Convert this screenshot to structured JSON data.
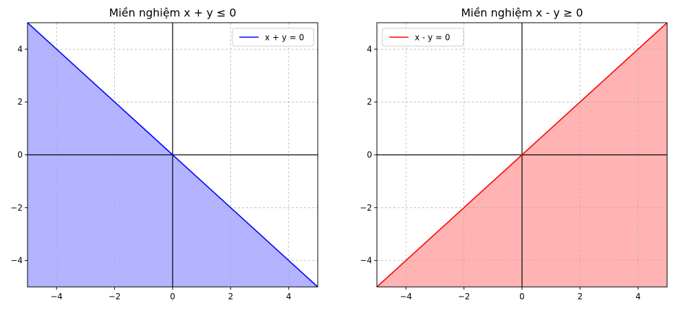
{
  "chart_data": [
    {
      "type": "area",
      "title": "Miền nghiệm x + y ≤ 0",
      "xlabel": "",
      "ylabel": "",
      "xlim": [
        -5,
        5
      ],
      "ylim": [
        -5,
        5
      ],
      "xticks": [
        -4,
        -2,
        0,
        2,
        4
      ],
      "yticks": [
        -4,
        -2,
        0,
        2,
        4
      ],
      "xtick_labels": [
        "−4",
        "−2",
        "0",
        "2",
        "4"
      ],
      "ytick_labels": [
        "−4",
        "−2",
        "0",
        "2",
        "4"
      ],
      "grid": true,
      "legend_position": "top-right",
      "series": [
        {
          "name": "x + y = 0",
          "color": "#0000ff",
          "x": [
            -5,
            5
          ],
          "y": [
            5,
            -5
          ]
        }
      ],
      "shaded_region": {
        "description_rule": "below line",
        "x": [
          -5,
          5
        ],
        "y_upper": [
          5,
          -5
        ],
        "y_lower": [
          -5,
          -5
        ],
        "color": "#b3b3ff"
      }
    },
    {
      "type": "area",
      "title": "Miền nghiệm x - y ≥ 0",
      "xlabel": "",
      "ylabel": "",
      "xlim": [
        -5,
        5
      ],
      "ylim": [
        -5,
        5
      ],
      "xticks": [
        -4,
        -2,
        0,
        2,
        4
      ],
      "yticks": [
        -4,
        -2,
        0,
        2,
        4
      ],
      "xtick_labels": [
        "−4",
        "−2",
        "0",
        "2",
        "4"
      ],
      "ytick_labels": [
        "−4",
        "−2",
        "0",
        "2",
        "4"
      ],
      "grid": true,
      "legend_position": "top-left",
      "series": [
        {
          "name": "x - y = 0",
          "color": "#ff0000",
          "x": [
            -5,
            5
          ],
          "y": [
            -5,
            5
          ]
        }
      ],
      "shaded_region": {
        "description_rule": "below line",
        "x": [
          -5,
          5
        ],
        "y_upper": [
          -5,
          5
        ],
        "y_lower": [
          -5,
          -5
        ],
        "color": "#ffb3b3"
      }
    }
  ]
}
